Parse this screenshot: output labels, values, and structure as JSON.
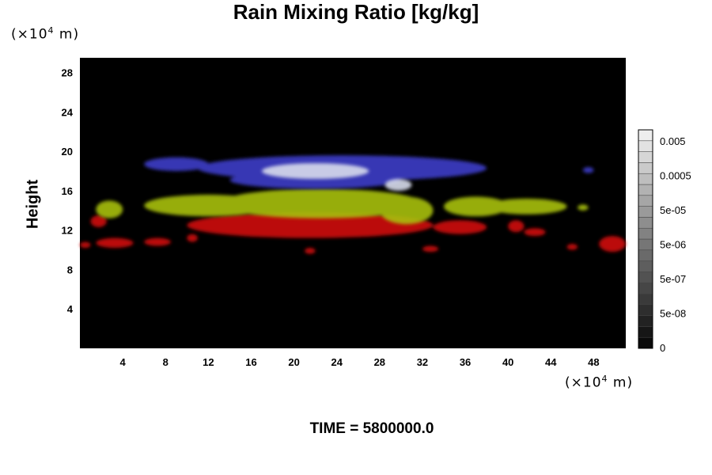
{
  "chart_data": {
    "type": "heatmap",
    "title": "Rain Mixing Ratio [kg/kg]",
    "ylabel": "Height",
    "xlabel": "",
    "y_unit": "(×10",
    "y_unit_exp": "4",
    "y_unit_suffix": " m)",
    "x_unit": "(×10",
    "x_unit_exp": "4",
    "x_unit_suffix": " m)",
    "xlim": [
      0,
      51
    ],
    "ylim": [
      0,
      29.5
    ],
    "x_ticks": [
      4,
      8,
      12,
      16,
      20,
      24,
      28,
      32,
      36,
      40,
      44,
      48
    ],
    "y_ticks": [
      4,
      8,
      12,
      16,
      20,
      24,
      28
    ],
    "background": "#000000",
    "colorbar": {
      "scale": "log",
      "labels": [
        "0.005",
        "0.0005",
        "5e-05",
        "5e-06",
        "5e-07",
        "5e-08",
        "0"
      ],
      "levels": 20
    },
    "layers": [
      {
        "name": "red",
        "color": "#d01010",
        "regions": [
          {
            "x": [
              0,
              1
            ],
            "y": [
              10.2,
              10.8
            ]
          },
          {
            "x": [
              1,
              2.5
            ],
            "y": [
              12.3,
              13.5
            ]
          },
          {
            "x": [
              1.5,
              5
            ],
            "y": [
              10.2,
              11.2
            ]
          },
          {
            "x": [
              6,
              8.5
            ],
            "y": [
              10.4,
              11.2
            ]
          },
          {
            "x": [
              10,
              11
            ],
            "y": [
              10.8,
              11.6
            ]
          },
          {
            "x": [
              10,
              33
            ],
            "y": [
              11.2,
              13.8
            ]
          },
          {
            "x": [
              21,
              22
            ],
            "y": [
              9.6,
              10.2
            ]
          },
          {
            "x": [
              32,
              33.5
            ],
            "y": [
              9.8,
              10.4
            ]
          },
          {
            "x": [
              33,
              38
            ],
            "y": [
              11.6,
              13.0
            ]
          },
          {
            "x": [
              40,
              41.5
            ],
            "y": [
              11.8,
              13.0
            ]
          },
          {
            "x": [
              41.5,
              43.5
            ],
            "y": [
              11.4,
              12.2
            ]
          },
          {
            "x": [
              45.5,
              46.5
            ],
            "y": [
              10.0,
              10.6
            ]
          },
          {
            "x": [
              48.5,
              51
            ],
            "y": [
              9.8,
              11.4
            ]
          }
        ]
      },
      {
        "name": "yellow-green",
        "color": "#a8c010",
        "regions": [
          {
            "x": [
              1.5,
              4
            ],
            "y": [
              13.2,
              15.0
            ]
          },
          {
            "x": [
              6,
              18
            ],
            "y": [
              13.4,
              15.6
            ]
          },
          {
            "x": [
              13,
              32
            ],
            "y": [
              13.2,
              16.2
            ]
          },
          {
            "x": [
              28,
              33
            ],
            "y": [
              12.6,
              15.4
            ]
          },
          {
            "x": [
              34,
              40
            ],
            "y": [
              13.4,
              15.4
            ]
          },
          {
            "x": [
              38,
              45.5
            ],
            "y": [
              13.6,
              15.2
            ]
          },
          {
            "x": [
              46.5,
              47.5
            ],
            "y": [
              14.0,
              14.6
            ]
          }
        ]
      },
      {
        "name": "blue",
        "color": "#3c3cc8",
        "regions": [
          {
            "x": [
              6,
              12
            ],
            "y": [
              18.0,
              19.4
            ]
          },
          {
            "x": [
              11,
              38
            ],
            "y": [
              17.0,
              19.6
            ]
          },
          {
            "x": [
              14,
              30
            ],
            "y": [
              16.2,
              18.0
            ]
          },
          {
            "x": [
              47,
              48
            ],
            "y": [
              17.8,
              18.4
            ]
          }
        ]
      },
      {
        "name": "white",
        "color": "#d8dcec",
        "regions": [
          {
            "x": [
              17,
              27
            ],
            "y": [
              17.2,
              18.8
            ]
          },
          {
            "x": [
              28.5,
              31
            ],
            "y": [
              16.0,
              17.2
            ]
          }
        ]
      }
    ]
  },
  "time_label": "TIME = 5800000.0"
}
